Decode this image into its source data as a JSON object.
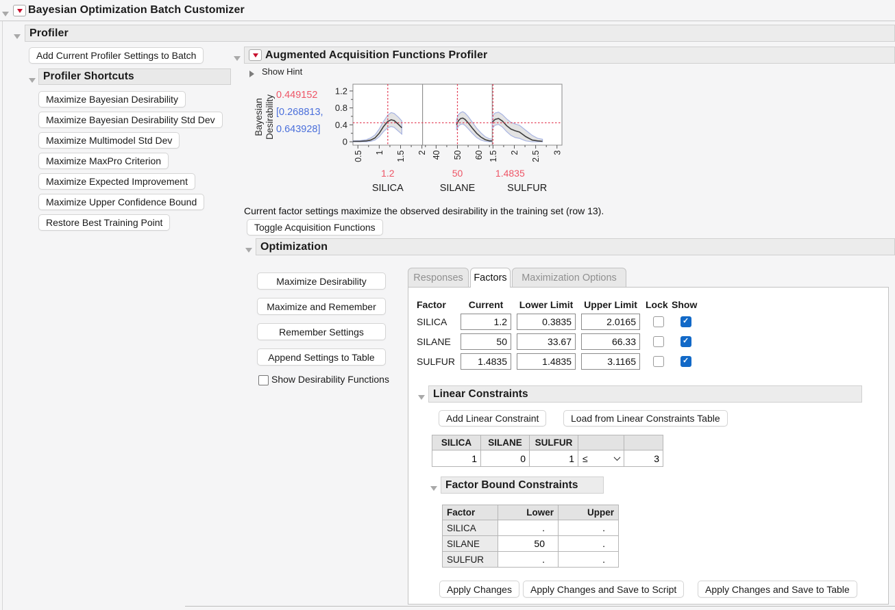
{
  "window": {
    "title": "Bayesian Optimization Batch Customizer"
  },
  "profiler": {
    "title": "Profiler",
    "add_button": "Add Current Profiler Settings to Batch",
    "shortcuts": {
      "title": "Profiler Shortcuts",
      "buttons": [
        "Maximize Bayesian Desirability",
        "Maximize Bayesian Desirability Std Dev",
        "Maximize Multimodel Std Dev",
        "Maximize MaxPro Criterion",
        "Maximize Expected Improvement",
        "Maximize Upper Confidence Bound",
        "Restore Best Training Point"
      ]
    }
  },
  "augmented": {
    "title": "Augmented Acquisition Functions Profiler",
    "show_hint": "Show Hint",
    "status_text": "Current factor settings maximize the observed desirability in the training set (row 13).",
    "toggle_button": "Toggle Acquisition Functions"
  },
  "chart_data": {
    "type": "line",
    "title": "Augmented Acquisition Functions Profiler",
    "ylabel": "Bayesian Desirability",
    "response": {
      "value": "0.449152",
      "ci_line1": "[0.268813,",
      "ci_line2": "0.643928]"
    },
    "colors": {
      "red_line": "#e1304a",
      "red_text": "#ee5566",
      "blue_text": "#4a6fdb",
      "band_fill": "#d9d9d9",
      "band_edge": "#a8b4e2",
      "mean_line": "#3d3d3d"
    },
    "ylim": [
      -0.08,
      1.36
    ],
    "yticks": [
      0,
      0.4,
      0.8,
      1.2
    ],
    "current_desirability": 0.449152,
    "legend_position": "none",
    "grid": false,
    "panels": [
      {
        "factor": "SILICA",
        "current": 1.2,
        "current_label": "1.2",
        "xlim": [
          0.3835,
          2.0165
        ],
        "xticks": [
          0.5,
          1,
          1.5,
          2
        ],
        "xtick_labels": [
          "0.5",
          "1",
          "1.5",
          "2"
        ],
        "x": [
          0.3835,
          0.55,
          0.7,
          0.8,
          0.9,
          1.0,
          1.1,
          1.2,
          1.28,
          1.35,
          1.45,
          1.53
        ],
        "mean": [
          0.01,
          0.01,
          0.02,
          0.04,
          0.09,
          0.2,
          0.36,
          0.48,
          0.52,
          0.5,
          0.41,
          0.33
        ],
        "lower": [
          0.0,
          0.0,
          0.0,
          0.01,
          0.04,
          0.12,
          0.24,
          0.33,
          0.36,
          0.34,
          0.25,
          0.18
        ],
        "upper": [
          0.02,
          0.025,
          0.05,
          0.09,
          0.16,
          0.3,
          0.48,
          0.63,
          0.69,
          0.67,
          0.58,
          0.49
        ]
      },
      {
        "factor": "SILANE",
        "current": 50,
        "current_label": "50",
        "xlim": [
          33.67,
          66.33
        ],
        "xticks": [
          40,
          50,
          60
        ],
        "xtick_labels": [
          "40",
          "50",
          "60"
        ],
        "x": [
          49.6,
          50.5,
          51.5,
          52.5,
          53.5,
          55,
          57,
          59,
          61,
          63,
          65,
          66.33
        ],
        "mean": [
          0.4,
          0.5,
          0.55,
          0.56,
          0.53,
          0.45,
          0.32,
          0.2,
          0.11,
          0.05,
          0.02,
          0.02
        ],
        "lower": [
          0.28,
          0.37,
          0.41,
          0.42,
          0.39,
          0.31,
          0.2,
          0.1,
          0.04,
          0.01,
          0.0,
          0.0
        ],
        "upper": [
          0.53,
          0.64,
          0.69,
          0.71,
          0.68,
          0.6,
          0.46,
          0.32,
          0.21,
          0.12,
          0.07,
          0.06
        ]
      },
      {
        "factor": "SULFUR",
        "current": 1.4835,
        "current_label": "1.4835",
        "xlim": [
          1.4835,
          3.1165
        ],
        "xticks": [
          1.5,
          2,
          2.5,
          3
        ],
        "xtick_labels": [
          "1.5",
          "2",
          "2.5",
          "3"
        ],
        "x": [
          1.4835,
          1.55,
          1.63,
          1.72,
          1.82,
          1.92,
          2.02,
          2.12,
          2.27,
          2.42,
          2.55,
          2.66
        ],
        "mean": [
          0.46,
          0.53,
          0.55,
          0.49,
          0.38,
          0.3,
          0.26,
          0.23,
          0.12,
          0.04,
          0.02,
          0.01
        ],
        "lower": [
          0.32,
          0.39,
          0.41,
          0.35,
          0.24,
          0.15,
          0.1,
          0.08,
          0.02,
          0.0,
          0.0,
          0.0
        ],
        "upper": [
          0.61,
          0.68,
          0.7,
          0.64,
          0.54,
          0.46,
          0.42,
          0.39,
          0.27,
          0.15,
          0.08,
          0.06
        ]
      }
    ]
  },
  "optimization": {
    "title": "Optimization",
    "buttons": [
      "Maximize Desirability",
      "Maximize and Remember",
      "Remember Settings",
      "Append Settings to Table"
    ],
    "show_desirability_label": "Show Desirability Functions",
    "tabs": [
      "Responses",
      "Factors",
      "Maximization Options"
    ],
    "active_tab": "Factors",
    "factors_table": {
      "headers": [
        "Factor",
        "Current",
        "Lower Limit",
        "Upper Limit",
        "Lock",
        "Show"
      ],
      "rows": [
        {
          "factor": "SILICA",
          "current": "1.2",
          "lower": "0.3835",
          "upper": "2.0165",
          "lock": false,
          "show": true
        },
        {
          "factor": "SILANE",
          "current": "50",
          "lower": "33.67",
          "upper": "66.33",
          "lock": false,
          "show": true
        },
        {
          "factor": "SULFUR",
          "current": "1.4835",
          "lower": "1.4835",
          "upper": "3.1165",
          "lock": false,
          "show": true
        }
      ]
    },
    "linear_constraints": {
      "title": "Linear Constraints",
      "add_button": "Add Linear Constraint",
      "load_button": "Load from Linear Constraints Table",
      "headers": [
        "SILICA",
        "SILANE",
        "SULFUR"
      ],
      "row": {
        "coefs": [
          "1",
          "0",
          "1"
        ],
        "op": "≤",
        "rhs": "3"
      }
    },
    "factor_bounds": {
      "title": "Factor Bound Constraints",
      "headers": [
        "Factor",
        "Lower",
        "Upper"
      ],
      "rows": [
        {
          "factor": "SILICA",
          "lower": ".",
          "upper": "."
        },
        {
          "factor": "SILANE",
          "lower": "50",
          "upper": "."
        },
        {
          "factor": "SULFUR",
          "lower": ".",
          "upper": "."
        }
      ]
    },
    "apply_buttons": [
      "Apply Changes",
      "Apply Changes and Save to Script",
      "Apply Changes and Save to Table"
    ]
  }
}
